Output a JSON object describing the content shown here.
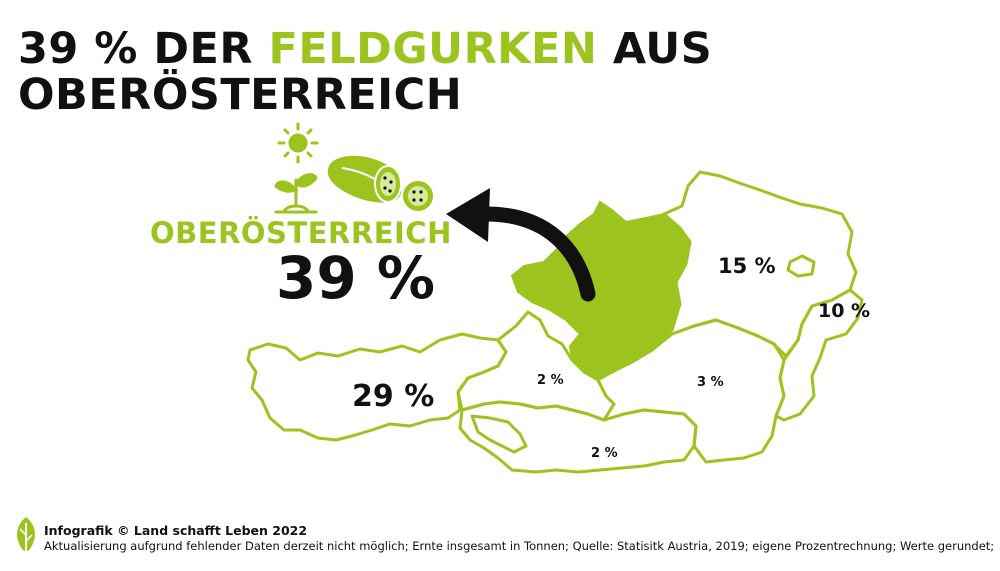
{
  "colors": {
    "accent": "#9dc31f",
    "text": "#111111",
    "background": "#ffffff"
  },
  "title": {
    "part1": "39 % DER ",
    "highlight": "FELDGURKEN",
    "part2": " AUS",
    "line2": "OBERÖSTERREICH"
  },
  "callout": {
    "region_name": "OBERÖSTERREICH",
    "value": "39 %",
    "icons": [
      "sun-icon",
      "seedling-icon",
      "cucumber-icon"
    ]
  },
  "regions": [
    {
      "id": "niederoesterreich",
      "label": "15 %"
    },
    {
      "id": "burgenland",
      "label": "10 %"
    },
    {
      "id": "tirol",
      "label": "29 %"
    },
    {
      "id": "salzburg",
      "label": "2 %"
    },
    {
      "id": "steiermark",
      "label": "3 %"
    },
    {
      "id": "kaernten",
      "label": "2 %"
    }
  ],
  "footer": {
    "credit": "Infografik © Land schafft Leben 2022",
    "note": "Aktualisierung aufgrund fehlender Daten derzeit nicht möglich; Ernte insgesamt in Tonnen; Quelle: Statisitk Austria, 2019; eigene Prozentrechnung; Werte gerundet;"
  }
}
